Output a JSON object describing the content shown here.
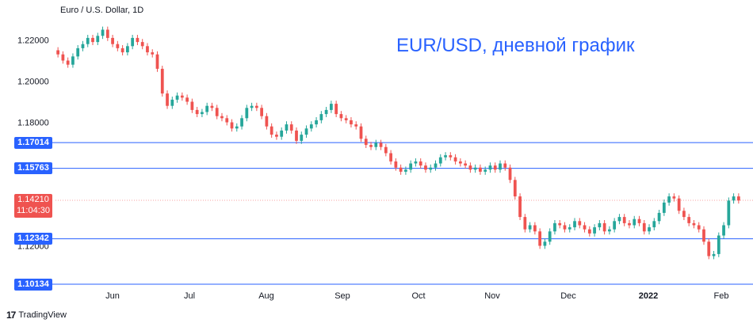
{
  "chart_data": {
    "type": "candlestick",
    "symbol": "Euro / U.S. Dollar, 1D",
    "annotation": "EUR/USD, дневной график",
    "x_ticks": [
      "Jun",
      "Jul",
      "Aug",
      "Sep",
      "Oct",
      "Nov",
      "Dec",
      "2022",
      "Feb"
    ],
    "y_ticks": [
      "1.22000",
      "1.20000",
      "1.18000",
      "1.12000"
    ],
    "ylim": [
      1.1,
      1.225
    ],
    "levels": [
      {
        "label": "1.17014",
        "value": 1.17014
      },
      {
        "label": "1.15763",
        "value": 1.15763
      },
      {
        "label": "1.12342",
        "value": 1.12342
      },
      {
        "label": "1.10134",
        "value": 1.10134
      }
    ],
    "current_price": {
      "label": "1.14210",
      "countdown": "11:04:30",
      "value": 1.1421
    },
    "colors": {
      "up": "#26a69a",
      "down": "#ef5350",
      "level": "#2962ff"
    },
    "closes": [
      1.213,
      1.21,
      1.208,
      1.212,
      1.216,
      1.218,
      1.221,
      1.219,
      1.222,
      1.225,
      1.221,
      1.218,
      1.216,
      1.214,
      1.217,
      1.221,
      1.219,
      1.217,
      1.214,
      1.213,
      1.206,
      1.194,
      1.188,
      1.191,
      1.193,
      1.192,
      1.19,
      1.186,
      1.184,
      1.185,
      1.188,
      1.187,
      1.183,
      1.182,
      1.18,
      1.177,
      1.178,
      1.182,
      1.187,
      1.188,
      1.187,
      1.183,
      1.178,
      1.174,
      1.173,
      1.176,
      1.179,
      1.176,
      1.171,
      1.174,
      1.177,
      1.179,
      1.181,
      1.184,
      1.186,
      1.189,
      1.184,
      1.182,
      1.181,
      1.179,
      1.178,
      1.172,
      1.169,
      1.168,
      1.17,
      1.168,
      1.165,
      1.161,
      1.158,
      1.156,
      1.157,
      1.16,
      1.161,
      1.159,
      1.157,
      1.158,
      1.16,
      1.163,
      1.164,
      1.163,
      1.161,
      1.16,
      1.159,
      1.157,
      1.158,
      1.156,
      1.157,
      1.159,
      1.157,
      1.16,
      1.158,
      1.152,
      1.144,
      1.134,
      1.128,
      1.13,
      1.127,
      1.12,
      1.122,
      1.127,
      1.131,
      1.13,
      1.128,
      1.129,
      1.132,
      1.13,
      1.128,
      1.126,
      1.129,
      1.131,
      1.127,
      1.128,
      1.132,
      1.134,
      1.131,
      1.13,
      1.133,
      1.131,
      1.127,
      1.129,
      1.132,
      1.136,
      1.141,
      1.144,
      1.143,
      1.137,
      1.134,
      1.131,
      1.13,
      1.128,
      1.122,
      1.115,
      1.116,
      1.125,
      1.13,
      1.142,
      1.144,
      1.142
    ]
  },
  "footer": {
    "brand": "TradingView"
  }
}
